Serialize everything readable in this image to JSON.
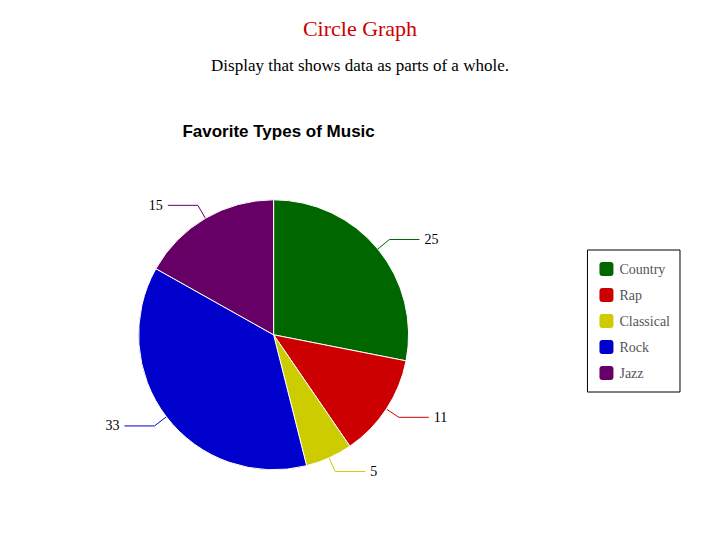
{
  "chart_data": {
    "type": "pie",
    "title": "Circle Graph",
    "subtitle": "Display that shows data as parts of a whole.",
    "annotations": [
      "Favorite Types of Music"
    ],
    "categories": [
      "Country",
      "Rap",
      "Classical",
      "Rock",
      "Jazz"
    ],
    "values": [
      25,
      11,
      5,
      33,
      15
    ],
    "colors": [
      "#006600",
      "#cc0000",
      "#cccc00",
      "#0000cc",
      "#660066"
    ],
    "data_labels": true,
    "legend": "right"
  }
}
